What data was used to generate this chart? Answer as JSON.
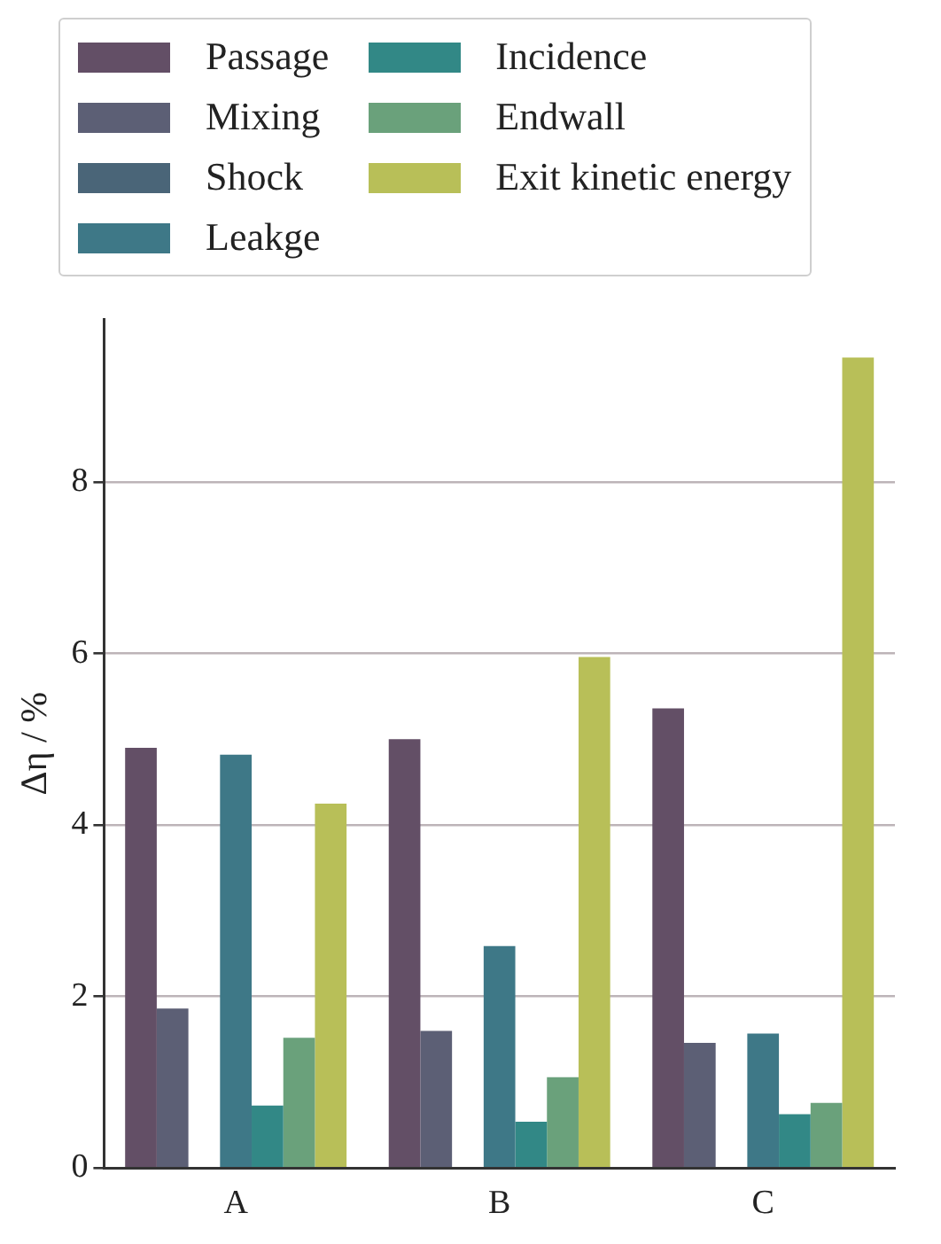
{
  "chart_data": {
    "type": "bar",
    "ylabel": "Δη / %",
    "categories": [
      "A",
      "B",
      "C"
    ],
    "series": [
      {
        "name": "Passage",
        "color": "#634f66",
        "values": [
          4.9,
          5.0,
          5.36
        ]
      },
      {
        "name": "Mixing",
        "color": "#5c5f75",
        "values": [
          1.86,
          1.6,
          1.46
        ]
      },
      {
        "name": "Shock",
        "color": "#4a6578",
        "values": [
          0,
          0,
          0
        ]
      },
      {
        "name": "Leakge",
        "color": "#3e7887",
        "values": [
          4.82,
          2.59,
          1.57
        ]
      },
      {
        "name": "Incidence",
        "color": "#328886",
        "values": [
          0.73,
          0.54,
          0.63
        ]
      },
      {
        "name": "Endwall",
        "color": "#6aa17b",
        "values": [
          1.52,
          1.06,
          0.76
        ]
      },
      {
        "name": "Exit kinetic energy",
        "color": "#b8bf58",
        "values": [
          4.25,
          5.96,
          9.45
        ]
      }
    ],
    "ylim": [
      0,
      9.9
    ],
    "yticks": [
      0,
      2,
      4,
      6,
      8
    ],
    "grid": "y",
    "legend": "top"
  }
}
